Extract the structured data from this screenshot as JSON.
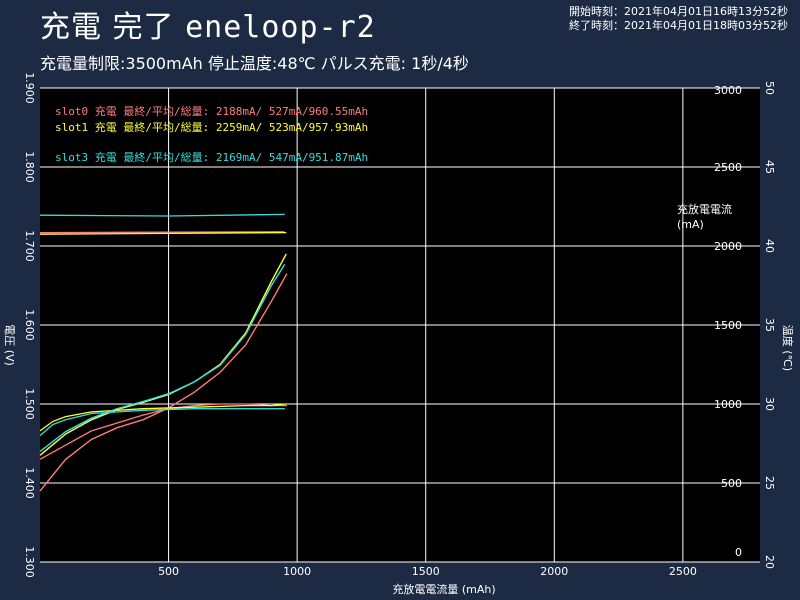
{
  "header": {
    "title_status": "充電 完了",
    "title_name": "eneloop-r2",
    "subtitle": "充電量制限:3500mAh 停止温度:48℃ パルス充電: 1秒/4秒",
    "start_time": "開始時刻：2021年04月01日16時13分52秒",
    "end_time": "終了時刻：2021年04月01日18時03分52秒"
  },
  "chart_data": {
    "type": "line",
    "xlabel": "充放電電流量 (mAh)",
    "ylabel_left": "電圧 (V)",
    "ylabel_right_temp": "温度 (℃)",
    "ylabel_right_current": "充放電電流\n(mA)",
    "xlim": [
      0,
      2800
    ],
    "xticks": [
      "500",
      "1000",
      "1500",
      "2000",
      "2500"
    ],
    "xtick_values": [
      500,
      1000,
      1500,
      2000,
      2500
    ],
    "ylim_voltage": [
      1.3,
      1.9
    ],
    "voltage_ticks": [
      "1.300",
      "1.400",
      "1.500",
      "1.600",
      "1.700",
      "1.800",
      "1.900"
    ],
    "voltage_tick_values": [
      1.3,
      1.4,
      1.5,
      1.6,
      1.7,
      1.8,
      1.9
    ],
    "ylim_current": [
      0,
      3000
    ],
    "current_ticks": [
      "0",
      "500",
      "1000",
      "1500",
      "2000",
      "2500",
      "3000"
    ],
    "current_tick_values": [
      0,
      500,
      1000,
      1500,
      2000,
      2500,
      3000
    ],
    "ylim_temp": [
      20,
      50
    ],
    "temp_ticks": [
      "20",
      "25",
      "30",
      "35",
      "40",
      "45",
      "50"
    ],
    "temp_tick_values": [
      20,
      25,
      30,
      35,
      40,
      45,
      50
    ],
    "grid": true,
    "legend": [
      {
        "text": "slot0  充電  最終/平均/総量: 2188mA/  527mA/960.55mAh",
        "color": "#ff7b7b"
      },
      {
        "text": "slot1  充電  最終/平均/総量: 2259mA/  523mA/957.93mAh",
        "color": "#ffff33"
      },
      {
        "text": "slot3  充電  最終/平均/総量: 2169mA/  547mA/951.87mAh",
        "color": "#33dddd"
      }
    ],
    "series": [
      {
        "slot": "slot0",
        "color": "#ff7b7b",
        "voltage": {
          "x": [
            0,
            100,
            200,
            300,
            400,
            500,
            600,
            700,
            800,
            900,
            960
          ],
          "y": [
            1.39,
            1.43,
            1.455,
            1.47,
            1.48,
            1.495,
            1.515,
            1.54,
            1.575,
            1.63,
            1.665
          ]
        },
        "temp": {
          "x": [
            0,
            200,
            400,
            500,
            600,
            700,
            800,
            900,
            960
          ],
          "y": [
            26.5,
            28.3,
            29.3,
            29.7,
            29.9,
            30.0,
            30.0,
            29.9,
            29.9
          ]
        },
        "current": {
          "x": [
            0,
            950
          ],
          "y": [
            2085,
            2090
          ]
        }
      },
      {
        "slot": "slot1",
        "color": "#ffff33",
        "voltage": {
          "x": [
            0,
            100,
            200,
            300,
            400,
            500,
            600,
            700,
            800,
            900,
            958
          ],
          "y": [
            1.435,
            1.462,
            1.48,
            1.493,
            1.502,
            1.512,
            1.528,
            1.55,
            1.59,
            1.655,
            1.69
          ]
        },
        "temp": {
          "x": [
            0,
            50,
            100,
            200,
            400,
            600,
            800,
            900,
            958
          ],
          "y": [
            28.3,
            28.9,
            29.2,
            29.5,
            29.7,
            29.8,
            29.9,
            29.9,
            30.0
          ]
        },
        "current": {
          "x": [
            0,
            958
          ],
          "y": [
            2075,
            2085
          ]
        }
      },
      {
        "slot": "slot3",
        "color": "#33dddd",
        "voltage": {
          "x": [
            0,
            100,
            200,
            300,
            400,
            500,
            600,
            700,
            800,
            900,
            952
          ],
          "y": [
            1.44,
            1.465,
            1.482,
            1.494,
            1.503,
            1.513,
            1.528,
            1.549,
            1.588,
            1.65,
            1.677
          ]
        },
        "temp": {
          "x": [
            0,
            50,
            100,
            200,
            400,
            600,
            800,
            952
          ],
          "y": [
            28.0,
            28.7,
            29.0,
            29.4,
            29.6,
            29.7,
            29.7,
            29.7
          ]
        },
        "current": {
          "x": [
            0,
            500,
            952
          ],
          "y": [
            2195,
            2190,
            2200
          ]
        }
      }
    ]
  }
}
